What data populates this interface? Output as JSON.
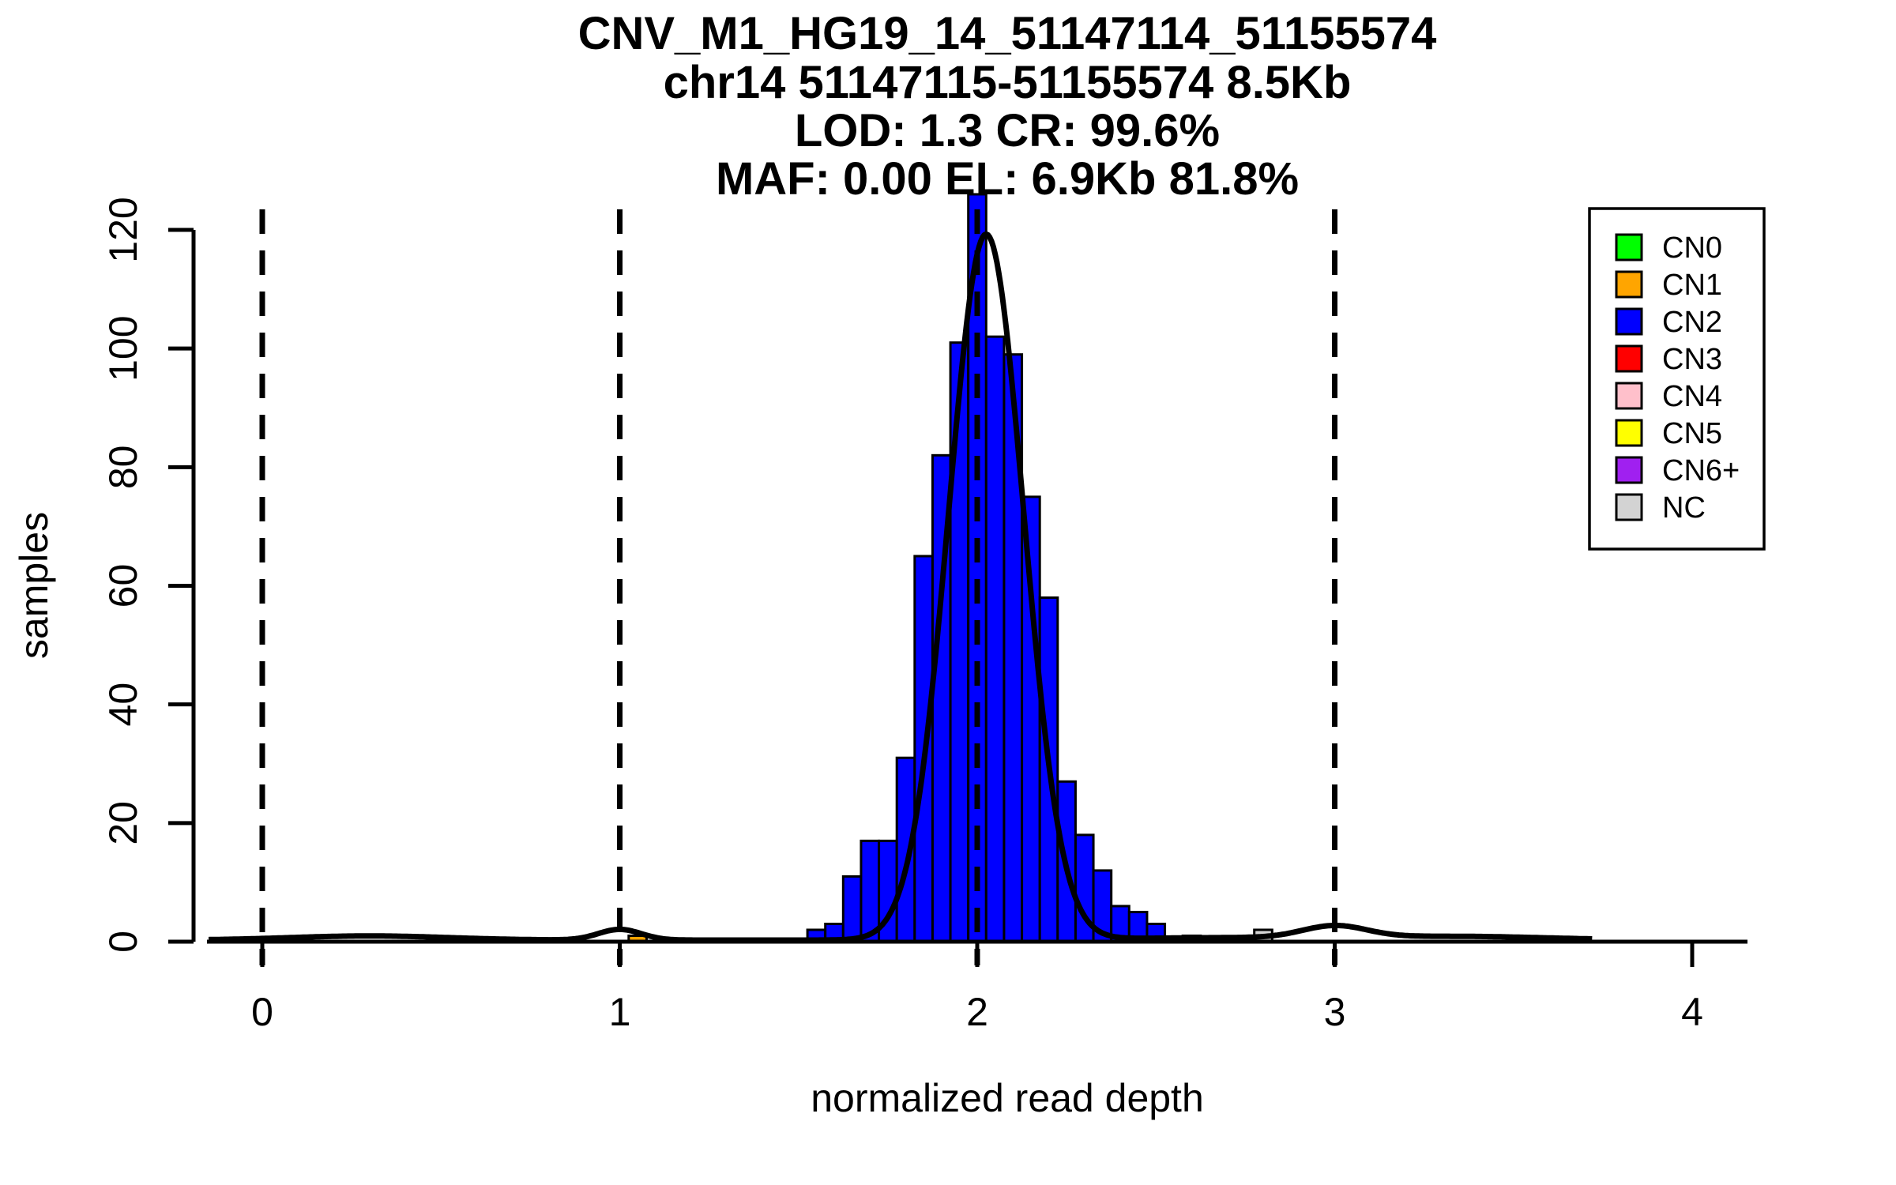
{
  "title": {
    "line1": "CNV_M1_HG19_14_51147114_51155574",
    "line2": "chr14 51147115-51155574 8.5Kb",
    "line3": "LOD: 1.3 CR: 99.6%",
    "line4": "MAF: 0.00 EL: 6.9Kb 81.8%"
  },
  "axes": {
    "xlabel": "normalized read depth",
    "ylabel": "samples",
    "x_ticks": [
      0,
      1,
      2,
      3,
      4
    ],
    "y_ticks": [
      0,
      20,
      40,
      60,
      80,
      100,
      120
    ],
    "x_range": [
      -0.16,
      4.16
    ],
    "y_range": [
      0,
      126
    ],
    "dashed_guides_x": [
      0,
      1,
      2,
      3
    ]
  },
  "legend": {
    "items": [
      {
        "label": "CN0",
        "color": "#00FF00"
      },
      {
        "label": "CN1",
        "color": "#FFA500"
      },
      {
        "label": "CN2",
        "color": "#0000FF"
      },
      {
        "label": "CN3",
        "color": "#FF0000"
      },
      {
        "label": "CN4",
        "color": "#FFC0CB"
      },
      {
        "label": "CN5",
        "color": "#FFFF00"
      },
      {
        "label": "CN6+",
        "color": "#A020F0"
      },
      {
        "label": "NC",
        "color": "#D3D3D3"
      }
    ]
  },
  "chart_data": {
    "type": "bar",
    "subtype": "histogram-with-density-curve",
    "title": "CNV_M1_HG19_14_51147114_51155574 / chr14 51147115-51155574 8.5Kb / LOD: 1.3 CR: 99.6% / MAF: 0.00 EL: 6.9Kb 81.8%",
    "xlabel": "normalized read depth",
    "ylabel": "samples",
    "xlim": [
      -0.16,
      4.16
    ],
    "ylim": [
      0,
      126
    ],
    "grid": false,
    "legend_position": "top-right",
    "bin_width": 0.05,
    "bars": [
      {
        "center": 1.05,
        "count": 1,
        "group": "CN1"
      },
      {
        "center": 1.55,
        "count": 2,
        "group": "CN2"
      },
      {
        "center": 1.6,
        "count": 3,
        "group": "CN2"
      },
      {
        "center": 1.65,
        "count": 11,
        "group": "CN2"
      },
      {
        "center": 1.7,
        "count": 17,
        "group": "CN2"
      },
      {
        "center": 1.75,
        "count": 17,
        "group": "CN2"
      },
      {
        "center": 1.8,
        "count": 31,
        "group": "CN2"
      },
      {
        "center": 1.85,
        "count": 65,
        "group": "CN2"
      },
      {
        "center": 1.9,
        "count": 82,
        "group": "CN2"
      },
      {
        "center": 1.95,
        "count": 101,
        "group": "CN2"
      },
      {
        "center": 2.0,
        "count": 126,
        "group": "CN2"
      },
      {
        "center": 2.05,
        "count": 102,
        "group": "CN2"
      },
      {
        "center": 2.1,
        "count": 99,
        "group": "CN2"
      },
      {
        "center": 2.15,
        "count": 75,
        "group": "CN2"
      },
      {
        "center": 2.2,
        "count": 58,
        "group": "CN2"
      },
      {
        "center": 2.25,
        "count": 27,
        "group": "CN2"
      },
      {
        "center": 2.3,
        "count": 18,
        "group": "CN2"
      },
      {
        "center": 2.35,
        "count": 12,
        "group": "CN2"
      },
      {
        "center": 2.4,
        "count": 6,
        "group": "CN2"
      },
      {
        "center": 2.45,
        "count": 5,
        "group": "CN2"
      },
      {
        "center": 2.5,
        "count": 3,
        "group": "CN2"
      },
      {
        "center": 2.6,
        "count": 1,
        "group": "CN2"
      },
      {
        "center": 2.8,
        "count": 2,
        "group": "NC"
      }
    ],
    "density_curve": {
      "color": "#000000",
      "x_start": -0.15,
      "x_end": 3.72,
      "components": [
        {
          "mu": 2.025,
          "sigma": 0.105,
          "amp": 119
        },
        {
          "mu": 1.0,
          "sigma": 0.06,
          "amp": 1.8
        },
        {
          "mu": 3.0,
          "sigma": 0.09,
          "amp": 2.0
        },
        {
          "mu": 0.3,
          "sigma": 0.22,
          "amp": 0.7
        },
        {
          "mu": 3.35,
          "sigma": 0.25,
          "amp": 0.6
        },
        {
          "mu": 2.7,
          "sigma": 0.3,
          "amp": 0.4
        }
      ]
    }
  }
}
